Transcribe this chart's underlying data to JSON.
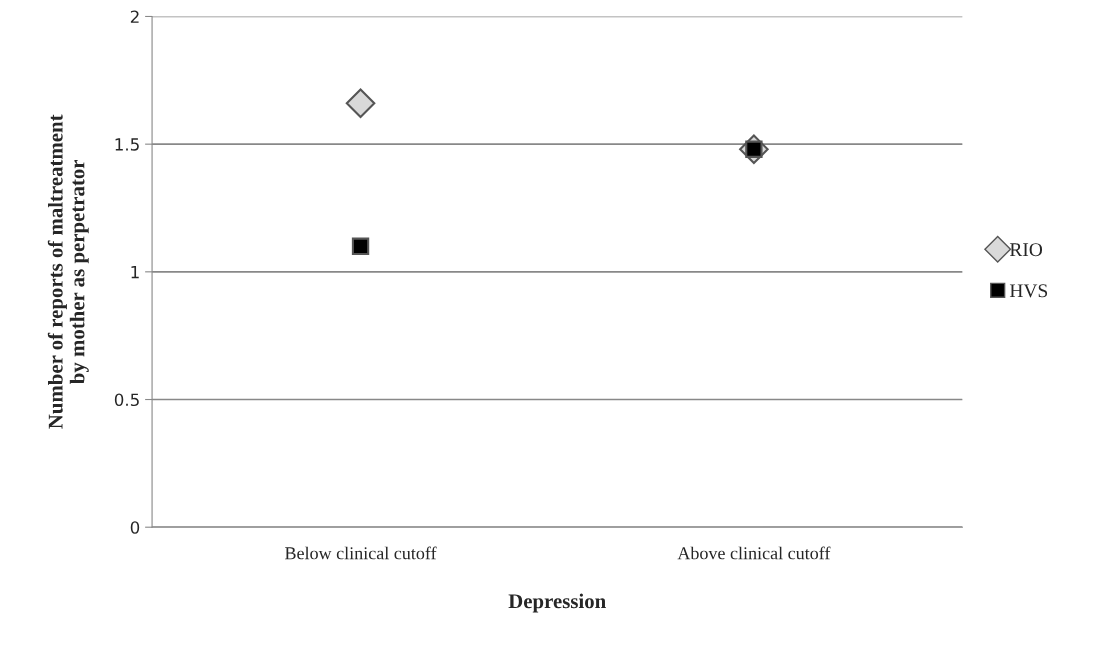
{
  "chart_data": {
    "type": "scatter",
    "xlabel": "Depression",
    "ylabel": "Number of reports of maltreatment\nby mother as perpetrator",
    "categories": [
      "Below clinical cutoff",
      "Above clinical cutoff"
    ],
    "series": [
      {
        "name": "RIO",
        "color": "#d9d9d9",
        "marker": "diamond",
        "values": [
          1.66,
          1.48
        ]
      },
      {
        "name": "HVS",
        "color": "#000000",
        "marker": "square",
        "values": [
          1.1,
          1.48
        ]
      }
    ],
    "ylim": [
      0,
      2
    ],
    "yticks": [
      0,
      0.5,
      1,
      1.5,
      2
    ],
    "grid": "y",
    "legend": "right"
  }
}
